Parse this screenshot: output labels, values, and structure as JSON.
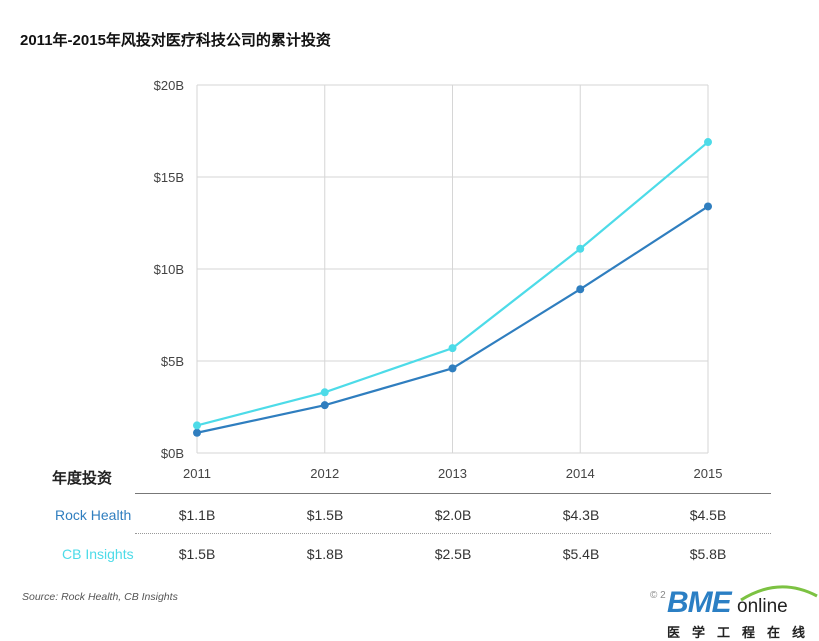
{
  "title": "2011年-2015年风投对医疗科技公司的累计投资",
  "chart_data": {
    "type": "line",
    "title": "2011年-2015年风投对医疗科技公司的累计投资",
    "x": [
      "2011",
      "2012",
      "2013",
      "2014",
      "2015"
    ],
    "yticks": [
      "$0B",
      "$5B",
      "$10B",
      "$15B",
      "$20B"
    ],
    "ylim": [
      0,
      20
    ],
    "grid": true,
    "series": [
      {
        "name": "Rock Health",
        "color": "#2f7ebf",
        "values": [
          1.1,
          2.6,
          4.6,
          8.9,
          13.4
        ]
      },
      {
        "name": "CB Insights",
        "color": "#4ddbe8",
        "values": [
          1.5,
          3.3,
          5.7,
          11.1,
          16.9
        ]
      }
    ]
  },
  "table": {
    "header": "年度投资",
    "rows": [
      {
        "label": "Rock Health",
        "color": "#2f7ebf",
        "values": [
          "$1.1B",
          "$1.5B",
          "$2.0B",
          "$4.3B",
          "$4.5B"
        ]
      },
      {
        "label": "CB Insights",
        "color": "#4ddbe8",
        "values": [
          "$1.5B",
          "$1.8B",
          "$2.5B",
          "$5.4B",
          "$5.8B"
        ]
      }
    ]
  },
  "source": "Source: Rock Health, CB Insights",
  "copyright": "© 2",
  "logo": {
    "main": "BME",
    "sub": "online",
    "cn": "医学工程在线"
  }
}
